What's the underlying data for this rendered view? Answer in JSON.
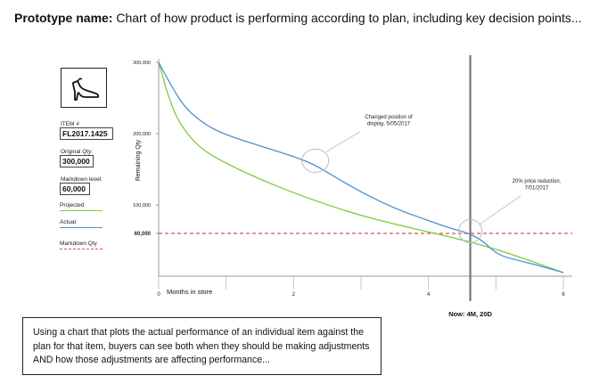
{
  "header": {
    "title_bold": "Prototype name:",
    "title_rest": "Chart of how product is performing according to plan, including key decision points..."
  },
  "sidebar": {
    "item_label": "ITEM #",
    "item_value": "FL2017.1425",
    "original_qty_label": "Original Qty:",
    "original_qty_value": "300,000",
    "markdown_label": "Markdown level:",
    "markdown_value": "60,000",
    "legend_projected": "Projected",
    "legend_actual": "Actual",
    "legend_markdown": "Markdown Qty",
    "shoe_icon": "high-heel-shoe-icon"
  },
  "colors": {
    "projected": "#7dcb3a",
    "actual": "#4a8fd6",
    "markdown": "#e8485a",
    "now_line": "#777777"
  },
  "chart_data": {
    "type": "line",
    "xlabel": "Months in store",
    "ylabel": "Remaining Qty",
    "xlim": [
      0,
      6
    ],
    "ylim": [
      0,
      300000
    ],
    "x_ticks": [
      0,
      1,
      2,
      3,
      4,
      5,
      6
    ],
    "x_tick_labels": [
      "0",
      "",
      "2",
      "",
      "4",
      "",
      "6"
    ],
    "y_ticks": [
      0,
      60000,
      100000,
      200000,
      300000
    ],
    "y_tick_labels": [
      "",
      "60,000",
      "100,000",
      "200,000",
      "300,000"
    ],
    "series": [
      {
        "name": "Projected",
        "x": [
          0,
          0.15,
          0.3,
          0.6,
          1.0,
          1.5,
          2.0,
          2.5,
          3.0,
          3.5,
          4.0,
          4.5,
          5.0,
          5.5,
          6.0
        ],
        "y": [
          300000,
          250000,
          215000,
          180000,
          158000,
          136000,
          117000,
          100000,
          85000,
          73000,
          62000,
          51000,
          38000,
          22000,
          5000
        ]
      },
      {
        "name": "Actual",
        "x": [
          0,
          0.2,
          0.4,
          0.7,
          1.0,
          1.5,
          2.0,
          2.3,
          2.6,
          3.0,
          3.5,
          4.0,
          4.3,
          4.6,
          4.8,
          5.0,
          5.2,
          5.6,
          6.0
        ],
        "y": [
          300000,
          265000,
          235000,
          212000,
          198000,
          183000,
          168000,
          157000,
          140000,
          118000,
          95000,
          78000,
          68000,
          60000,
          50000,
          32000,
          25000,
          16000,
          5000
        ]
      }
    ],
    "markdown_level": 60000,
    "now_marker": {
      "x": 4.62,
      "label": "Now: 4M, 20D"
    },
    "annotations": [
      {
        "text_lines": [
          "Changed position of",
          "display, 5/05/2017"
        ],
        "x": 2.35,
        "y": 162000
      },
      {
        "text_lines": [
          "20% price reduction,",
          "7/01/2017"
        ],
        "x": 4.62,
        "y": 62000
      }
    ]
  },
  "caption": "Using a chart that plots the actual performance of an individual item against the plan for that item, buyers can see both when they should be making adjustments AND how those adjustments are affecting performance..."
}
